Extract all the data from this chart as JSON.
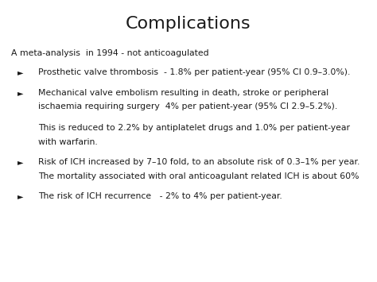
{
  "title": "Complications",
  "background_color": "#ffffff",
  "text_color": "#1a1a1a",
  "title_fontsize": 16,
  "body_fontsize": 7.8,
  "arrow_fontsize": 7.0,
  "intro_line": "A meta-analysis  in 1994 - not anticoagulated",
  "bullets": [
    {
      "lines": [
        "Prosthetic valve thrombosis  - 1.8% per patient-year (95% CI 0.9–3.0%)."
      ],
      "indent_lines": []
    },
    {
      "lines": [
        "Mechanical valve embolism resulting in death, stroke or peripheral",
        "ischaemia requiring surgery  4% per patient-year (95% CI 2.9–5.2%)."
      ],
      "indent_lines": [
        "",
        "This is reduced to 2.2% by antiplatelet drugs and 1.0% per patient-year",
        "with warfarin."
      ]
    },
    {
      "lines": [
        "Risk of ICH increased by 7–10 fold, to an absolute risk of 0.3–1% per year.",
        "The mortality associated with oral anticoagulant related ICH is about 60%"
      ],
      "indent_lines": []
    },
    {
      "lines": [
        "The risk of ICH recurrence   - 2% to 4% per patient-year."
      ],
      "indent_lines": []
    }
  ],
  "fig_width": 4.74,
  "fig_height": 3.55,
  "dpi": 100
}
